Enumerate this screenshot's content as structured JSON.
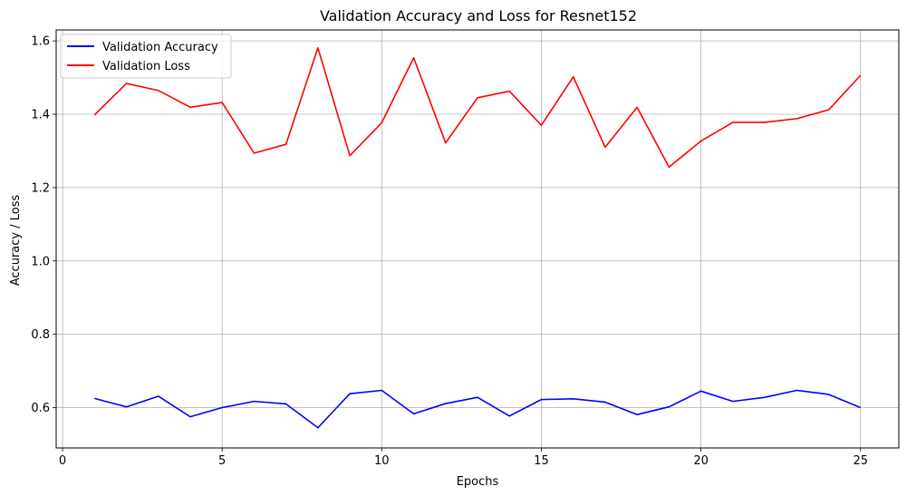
{
  "chart_data": {
    "type": "line",
    "title": "Validation Accuracy and Loss for Resnet152",
    "xlabel": "Epochs",
    "ylabel": "Accuracy / Loss",
    "xlim": [
      -0.2,
      26.2
    ],
    "ylim": [
      0.49,
      1.63
    ],
    "xticks": [
      0,
      5,
      10,
      15,
      20,
      25
    ],
    "yticks": [
      0.6,
      0.8,
      1.0,
      1.2,
      1.4,
      1.6
    ],
    "xtick_labels": [
      "0",
      "5",
      "10",
      "15",
      "20",
      "25"
    ],
    "ytick_labels": [
      "0.6",
      "0.8",
      "1.0",
      "1.2",
      "1.4",
      "1.6"
    ],
    "grid": true,
    "legend_position": "top-left",
    "x": [
      1,
      2,
      3,
      4,
      5,
      6,
      7,
      8,
      9,
      10,
      11,
      12,
      13,
      14,
      15,
      16,
      17,
      18,
      19,
      20,
      21,
      22,
      23,
      24,
      25
    ],
    "series": [
      {
        "name": "Validation Accuracy",
        "color": "#0000ff",
        "values": [
          0.625,
          0.602,
          0.631,
          0.575,
          0.6,
          0.617,
          0.61,
          0.545,
          0.638,
          0.647,
          0.583,
          0.611,
          0.628,
          0.577,
          0.622,
          0.624,
          0.615,
          0.581,
          0.602,
          0.645,
          0.617,
          0.628,
          0.647,
          0.636,
          0.6
        ]
      },
      {
        "name": "Validation Loss",
        "color": "#ff0000",
        "values": [
          1.398,
          1.484,
          1.465,
          1.419,
          1.432,
          1.294,
          1.318,
          1.581,
          1.287,
          1.377,
          1.554,
          1.322,
          1.445,
          1.463,
          1.37,
          1.502,
          1.31,
          1.419,
          1.256,
          1.327,
          1.378,
          1.378,
          1.388,
          1.412,
          1.506
        ]
      }
    ]
  }
}
